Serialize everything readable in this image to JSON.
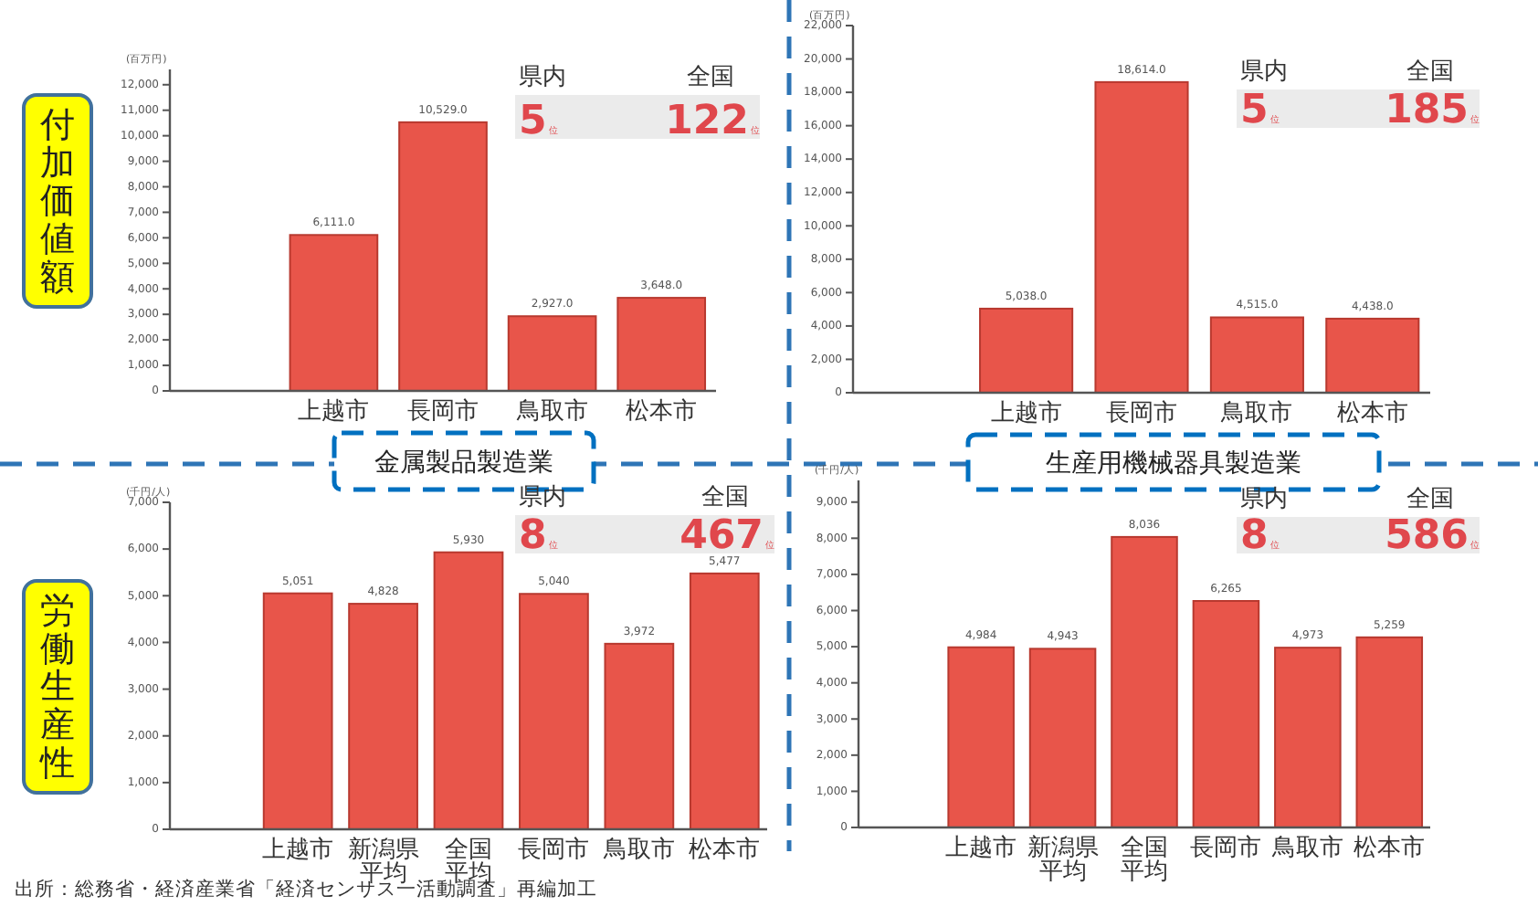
{
  "chart_data": [
    {
      "type": "bar",
      "title": "金属製品製造業",
      "subtitle": "付加価値額",
      "ylabel": "(百万円)",
      "color": "#e8554a",
      "categories": [
        null,
        "上越市",
        "長岡市",
        "鳥取市",
        "松本市"
      ],
      "values": [
        null,
        6111,
        10529,
        2927,
        3648
      ],
      "value_labels": [
        null,
        "6,111.0",
        "10,529.0",
        "2,927.0",
        "3,648.0"
      ],
      "ylim": [
        0,
        12600
      ],
      "yticks": [
        {
          "value": 0,
          "label": "0"
        },
        {
          "value": 1000,
          "label": "1,000"
        },
        {
          "value": 2000,
          "label": "2,000"
        },
        {
          "value": 3000,
          "label": "3,000"
        },
        {
          "value": 4000,
          "label": "4,000"
        },
        {
          "value": 5000,
          "label": "5,000"
        },
        {
          "value": 6000,
          "label": "6,000"
        },
        {
          "value": 7000,
          "label": "7,000"
        },
        {
          "value": 8000,
          "label": "8,000"
        },
        {
          "value": 9000,
          "label": "9,000"
        },
        {
          "value": 10000,
          "label": "10,000"
        },
        {
          "value": 11000,
          "label": "11,000"
        },
        {
          "value": 12000,
          "label": "12,000"
        }
      ],
      "annotations": [
        "県内",
        "5",
        "位",
        "全国",
        "122",
        "位"
      ]
    },
    {
      "type": "bar",
      "title": "生産用機械器具製造業",
      "ylabel": "(百万円)",
      "color": "#e8554a",
      "categories": [
        null,
        "上越市",
        "長岡市",
        "鳥取市",
        "松本市"
      ],
      "values": [
        null,
        5038,
        18614,
        4515,
        4438
      ],
      "value_labels": [
        null,
        "5,038.0",
        "18,614.0",
        "4,515.0",
        "4,438.0"
      ],
      "ylim": [
        0,
        22000
      ],
      "yticks": [
        {
          "value": 0,
          "label": "0"
        },
        {
          "value": 2000,
          "label": "2,000"
        },
        {
          "value": 4000,
          "label": "4,000"
        },
        {
          "value": 6000,
          "label": "6,000"
        },
        {
          "value": 8000,
          "label": "8,000"
        },
        {
          "value": 10000,
          "label": "10,000"
        },
        {
          "value": 12000,
          "label": "12,000"
        },
        {
          "value": 14000,
          "label": "14,000"
        },
        {
          "value": 16000,
          "label": "16,000"
        },
        {
          "value": 18000,
          "label": "18,000"
        },
        {
          "value": 20000,
          "label": "20,000"
        },
        {
          "value": 22000,
          "label": "22,000"
        }
      ],
      "annotations": [
        "県内",
        "5",
        "位",
        "全国",
        "185",
        "位"
      ]
    },
    {
      "type": "bar",
      "subtitle": "労働生産性",
      "ylabel": "(千円/人)",
      "color": "#e8554a",
      "categories": [
        null,
        "上越市",
        "新潟県平均",
        "全国平均",
        "長岡市",
        "鳥取市",
        "松本市"
      ],
      "values": [
        null,
        5051,
        4828,
        5930,
        5040,
        3972,
        5477
      ],
      "value_labels": [
        null,
        "5,051",
        "4,828",
        "5,930",
        "5,040",
        "3,972",
        "5,477"
      ],
      "ylim": [
        0,
        7000
      ],
      "yticks": [
        {
          "value": 0,
          "label": "0"
        },
        {
          "value": 1000,
          "label": "1,000"
        },
        {
          "value": 2000,
          "label": "2,000"
        },
        {
          "value": 3000,
          "label": "3,000"
        },
        {
          "value": 4000,
          "label": "4,000"
        },
        {
          "value": 5000,
          "label": "5,000"
        },
        {
          "value": 6000,
          "label": "6,000"
        },
        {
          "value": 7000,
          "label": "7,000"
        }
      ],
      "annotations": [
        "県内",
        "8",
        "位",
        "全国",
        "467",
        "位",
        "出所：総務省・経済産業省「経済センサス一活動調査」再編加工"
      ]
    },
    {
      "type": "bar",
      "ylabel": "(千円/人)",
      "color": "#e8554a",
      "categories": [
        null,
        "上越市",
        "新潟県平均",
        "全国平均",
        "長岡市",
        "鳥取市",
        "松本市"
      ],
      "values": [
        null,
        4984,
        4943,
        8036,
        6265,
        4973,
        5259
      ],
      "value_labels": [
        null,
        "4,984",
        "4,943",
        "8,036",
        "6,265",
        "4,973",
        "5,259"
      ],
      "ylim": [
        0,
        9600
      ],
      "yticks": [
        {
          "value": 0,
          "label": "0"
        },
        {
          "value": 1000,
          "label": "1,000"
        },
        {
          "value": 2000,
          "label": "2,000"
        },
        {
          "value": 3000,
          "label": "3,000"
        },
        {
          "value": 4000,
          "label": "4,000"
        },
        {
          "value": 5000,
          "label": "5,000"
        },
        {
          "value": 6000,
          "label": "6,000"
        },
        {
          "value": 7000,
          "label": "7,000"
        },
        {
          "value": 8000,
          "label": "8,000"
        },
        {
          "value": 9000,
          "label": "9,000"
        }
      ],
      "annotations": [
        "県内",
        "8",
        "位",
        "全国",
        "586",
        "位"
      ]
    }
  ]
}
